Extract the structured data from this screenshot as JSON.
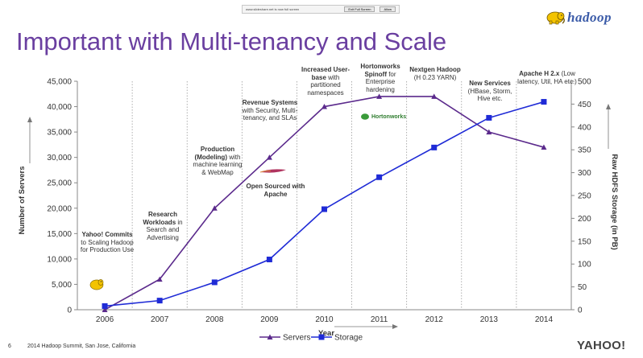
{
  "fullscreen_bar": {
    "message": "www.slideshare.net is now full screen",
    "exit_label": "Exit Full Screen",
    "allow_label": "Allow"
  },
  "logo": {
    "text": "hadoop"
  },
  "slide": {
    "title": "Important with Multi-tenancy and Scale",
    "page_number": "6",
    "footer": "2014 Hadoop Summit, San Jose, California",
    "brand": "YAHOO!"
  },
  "annotations": [
    {
      "bold": "Yahoo! Commits",
      "text": " to Scaling Hadoop for Production Use"
    },
    {
      "bold": "Research Workloads",
      "text": " in Search and Advertising"
    },
    {
      "bold": "Production (Modeling)",
      "text": " with machine learning & WebMap"
    },
    {
      "bold": "Revenue Systems",
      "text": " with Security, Multi-tenancy, and SLAs"
    },
    {
      "bold": "Open Sourced with Apache",
      "text": ""
    },
    {
      "bold": "Increased User-base",
      "text": " with partitioned namespaces"
    },
    {
      "bold": "Hortonworks Spinoff",
      "text": " for Enterprise hardening"
    },
    {
      "bold": "Nextgen Hadoop",
      "text": " (H 0.23 YARN)"
    },
    {
      "bold": "New Services",
      "text": " (HBase, Storm, Hive etc."
    },
    {
      "bold": "Apache H 2.x",
      "text": " (Low latency, Util, HA etc.)"
    }
  ],
  "hortonworks_label": "Hortonworks",
  "chart_data": {
    "type": "line",
    "title": "Important with Multi-tenancy and Scale",
    "xlabel": "Year",
    "ylabel": "Number of Servers",
    "y2label": "Raw HDFS Storage (in PB)",
    "categories": [
      "2006",
      "2007",
      "2008",
      "2009",
      "2010",
      "2011",
      "2012",
      "2013",
      "2014"
    ],
    "ylim": [
      0,
      45000
    ],
    "y2lim": [
      0,
      500
    ],
    "yticks": [
      "0",
      "5,000",
      "10,000",
      "15,000",
      "20,000",
      "25,000",
      "30,000",
      "35,000",
      "40,000",
      "45,000"
    ],
    "y2ticks": [
      "0",
      "50",
      "100",
      "150",
      "200",
      "250",
      "300",
      "350",
      "400",
      "450",
      "500"
    ],
    "series": [
      {
        "name": "Servers",
        "axis": "left",
        "color": "#5b2a8c",
        "marker": "triangle",
        "values": [
          0,
          6000,
          20000,
          30000,
          40000,
          42000,
          42000,
          35000,
          32000
        ]
      },
      {
        "name": "Storage",
        "axis": "right",
        "color": "#1f2bd6",
        "marker": "square",
        "values": [
          8,
          20,
          60,
          110,
          220,
          290,
          355,
          420,
          455
        ]
      }
    ],
    "legend": "bottom-center",
    "grid": "vertical dotted"
  }
}
